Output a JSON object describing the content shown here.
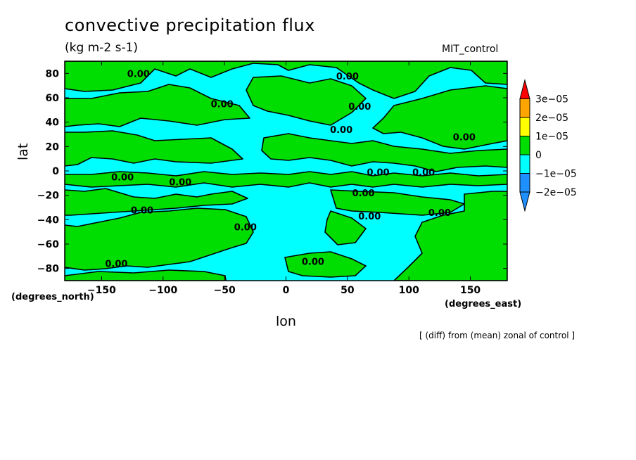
{
  "chart_data": {
    "type": "heatmap",
    "title": "convective precipitation flux",
    "units": "(kg m-2 s-1)",
    "dataset": "MIT_control",
    "xlabel": "lon",
    "ylabel": "lat",
    "x_units": "(degrees_east)",
    "y_units": "(degrees_north)",
    "footnote": "[ (diff) from (mean) zonal of control ]",
    "xlim": [
      -180,
      180
    ],
    "ylim": [
      -90,
      90
    ],
    "x_ticks": [
      {
        "value": -150,
        "label": "−150"
      },
      {
        "value": -100,
        "label": "−100"
      },
      {
        "value": -50,
        "label": "−50"
      },
      {
        "value": 0,
        "label": "0"
      },
      {
        "value": 50,
        "label": "50"
      },
      {
        "value": 100,
        "label": "100"
      },
      {
        "value": 150,
        "label": "150"
      }
    ],
    "y_ticks": [
      {
        "value": 80,
        "label": "80"
      },
      {
        "value": 60,
        "label": "60"
      },
      {
        "value": 40,
        "label": "40"
      },
      {
        "value": 20,
        "label": "20"
      },
      {
        "value": 0,
        "label": "0"
      },
      {
        "value": -20,
        "label": "−20"
      },
      {
        "value": -40,
        "label": "−40"
      },
      {
        "value": -60,
        "label": "−60"
      },
      {
        "value": -80,
        "label": "−80"
      }
    ],
    "colorbar": {
      "bins": [
        {
          "range": "< -2e-05",
          "color": "#1e90ff"
        },
        {
          "range": "-2e-05 to -1e-05",
          "color": "#1e90ff"
        },
        {
          "range": "-1e-05 to 0",
          "color": "#00ffff"
        },
        {
          "range": "0 to 1e-05",
          "color": "#00dd00"
        },
        {
          "range": "1e-05 to 2e-05",
          "color": "#ffff00"
        },
        {
          "range": "2e-05 to 3e-05",
          "color": "#ffa500"
        },
        {
          "range": "> 3e-05",
          "color": "#ff0000"
        }
      ],
      "labels": [
        "3e−05",
        "2e−05",
        "1e−05",
        "0",
        "−1e−05",
        "−2e−05"
      ]
    },
    "contour_label": "0.00",
    "contour_label_positions": [
      {
        "lon": -120,
        "lat": 80
      },
      {
        "lon": -52,
        "lat": 55
      },
      {
        "lon": 50,
        "lat": 78
      },
      {
        "lon": 60,
        "lat": 53
      },
      {
        "lon": 45,
        "lat": 34
      },
      {
        "lon": 145,
        "lat": 28
      },
      {
        "lon": -133,
        "lat": -5
      },
      {
        "lon": -86,
        "lat": -9
      },
      {
        "lon": 75,
        "lat": -1
      },
      {
        "lon": 112,
        "lat": -1
      },
      {
        "lon": 63,
        "lat": -18
      },
      {
        "lon": -117,
        "lat": -32
      },
      {
        "lon": 68,
        "lat": -37
      },
      {
        "lon": 125,
        "lat": -34
      },
      {
        "lon": -33,
        "lat": -46
      },
      {
        "lon": -138,
        "lat": -76
      },
      {
        "lon": 22,
        "lat": -74
      }
    ],
    "region_colors": {
      "negative": "#00ffff",
      "positive": "#00dd00"
    }
  }
}
